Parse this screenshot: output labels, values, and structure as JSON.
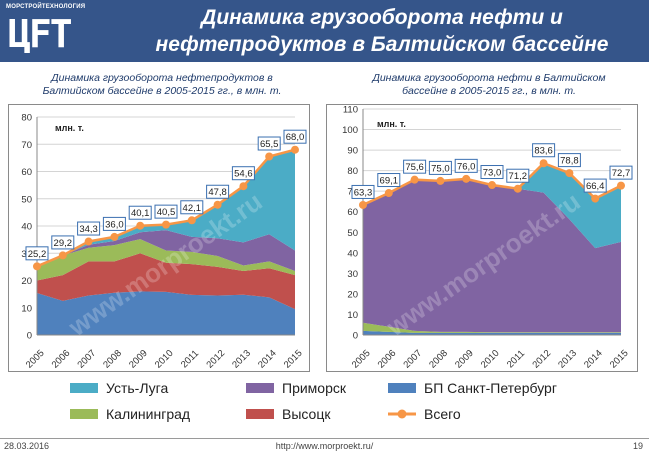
{
  "header": {
    "logo_caption": "МОРСТРОЙТЕХНОЛОГИЯ",
    "logo_mark": "ЦFТ",
    "title_line1": "Динамика грузооборота нефти и",
    "title_line2": "нефтепродуктов в Балтийском бассейне",
    "bg_color": "#35558a"
  },
  "chart_data": [
    {
      "type": "area",
      "stacked": true,
      "subtitle_line1": "Динамика грузооборота нефтепродуктов в",
      "subtitle_line2": "Балтийском бассейне в 2005-2015 гг., в млн. т.",
      "unit_label": "млн. т.",
      "x": [
        "2005",
        "2006",
        "2007",
        "2008",
        "2009",
        "2010",
        "2011",
        "2012",
        "2013",
        "2014",
        "2015"
      ],
      "ylim": [
        0,
        80
      ],
      "yticks": [
        0,
        10,
        20,
        30,
        40,
        50,
        60,
        70,
        80
      ],
      "grid": true,
      "series": [
        {
          "name": "БП Санкт-Петербург",
          "color": "#4f81bd",
          "values": [
            15.4,
            12.5,
            14.5,
            15.5,
            16.0,
            15.8,
            14.7,
            14.5,
            14.8,
            13.8,
            9.5
          ]
        },
        {
          "name": "Высоцк",
          "color": "#c0504d",
          "values": [
            4.6,
            9.5,
            12.5,
            11.5,
            14.0,
            10.7,
            11.3,
            10.5,
            8.7,
            10.7,
            12.5
          ]
        },
        {
          "name": "Калининград",
          "color": "#9bbb59",
          "values": [
            5.2,
            7.2,
            5.0,
            6.0,
            5.2,
            4.5,
            4.5,
            4.0,
            2.0,
            2.5,
            1.5
          ]
        },
        {
          "name": "Приморск",
          "color": "#8064a2",
          "values": [
            0,
            0,
            1.1,
            1.5,
            2.5,
            7.5,
            5.5,
            6.5,
            8.5,
            10.0,
            7.5
          ]
        },
        {
          "name": "Усть-Луга",
          "color": "#4bacc6",
          "values": [
            0,
            0,
            1.2,
            1.5,
            2.4,
            2.0,
            6.1,
            12.3,
            20.6,
            28.5,
            37.0
          ]
        }
      ],
      "total": {
        "name": "Всего",
        "color": "#f79646",
        "values": [
          25.2,
          29.2,
          34.3,
          36.0,
          40.1,
          40.5,
          42.1,
          47.8,
          54.6,
          65.5,
          68.0
        ]
      },
      "data_labels": [
        "25,2",
        "29,2",
        "34,3",
        "36,0",
        "40,1",
        "40,5",
        "42,1",
        "47,8",
        "54,6",
        "65,5",
        "68,0"
      ]
    },
    {
      "type": "area",
      "stacked": true,
      "subtitle_line1": "Динамика грузооборота нефти в Балтийском",
      "subtitle_line2": "бассейне в 2005-2015 гг., в млн. т.",
      "unit_label": "млн. т.",
      "x": [
        "2005",
        "2006",
        "2007",
        "2008",
        "2009",
        "2010",
        "2011",
        "2012",
        "2013",
        "2014",
        "2015"
      ],
      "ylim": [
        0,
        110
      ],
      "yticks": [
        0,
        10,
        20,
        30,
        40,
        50,
        60,
        70,
        80,
        90,
        100,
        110
      ],
      "grid": true,
      "series": [
        {
          "name": "БП Санкт-Петербург",
          "color": "#4f81bd",
          "values": [
            2.0,
            1.5,
            1.0,
            1.0,
            1.0,
            1.0,
            1.0,
            1.0,
            1.0,
            1.0,
            1.0
          ]
        },
        {
          "name": "Высоцк",
          "color": "#c0504d",
          "values": [
            0,
            0,
            0,
            0,
            0,
            0,
            0,
            0,
            0,
            0,
            0
          ]
        },
        {
          "name": "Калининград",
          "color": "#9bbb59",
          "values": [
            4.0,
            2.5,
            1.0,
            0.5,
            0.5,
            0.3,
            0.3,
            0.3,
            0.3,
            0.3,
            0.3
          ]
        },
        {
          "name": "Приморск",
          "color": "#8064a2",
          "values": [
            57.3,
            65.1,
            73.6,
            73.5,
            74.5,
            71.7,
            69.9,
            68.0,
            55.0,
            41.0,
            44.0
          ]
        },
        {
          "name": "Усть-Луга",
          "color": "#4bacc6",
          "values": [
            0,
            0,
            0,
            0,
            0,
            0,
            0,
            14.3,
            22.5,
            24.1,
            27.4
          ]
        }
      ],
      "total": {
        "name": "Всего",
        "color": "#f79646",
        "values": [
          63.3,
          69.1,
          75.6,
          75.0,
          76.0,
          73.0,
          71.2,
          83.6,
          78.8,
          66.4,
          72.7
        ]
      },
      "data_labels": [
        "63,3",
        "69,1",
        "75,6",
        "75,0",
        "76,0",
        "73,0",
        "71,2",
        "83,6",
        "78,8",
        "66,4",
        "72,7"
      ]
    }
  ],
  "legend": {
    "items": [
      {
        "label": "Усть-Луга",
        "color": "#4bacc6",
        "kind": "area"
      },
      {
        "label": "Приморск",
        "color": "#8064a2",
        "kind": "area"
      },
      {
        "label": "БП Санкт-Петербург",
        "color": "#4f81bd",
        "kind": "area"
      },
      {
        "label": "Калининград",
        "color": "#9bbb59",
        "kind": "area"
      },
      {
        "label": "Высоцк",
        "color": "#c0504d",
        "kind": "area"
      },
      {
        "label": "Всего",
        "color": "#f79646",
        "kind": "line"
      }
    ]
  },
  "watermark": "www.morproekt.ru",
  "footer": {
    "date": "28.03.2016",
    "url": "http://www.morproekt.ru/",
    "page": "19"
  }
}
